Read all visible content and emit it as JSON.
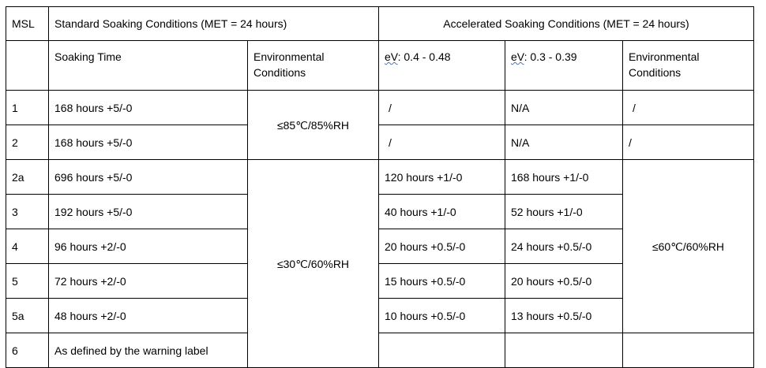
{
  "header": {
    "msl": "MSL",
    "standard": "Standard Soaking Conditions (MET = 24 hours)",
    "accelerated": "Accelerated Soaking Conditions (MET = 24 hours)"
  },
  "subheader": {
    "soaking_time": "Soaking Time",
    "env": "Environmental Conditions",
    "ev1_prefix": "eV",
    "ev1_rest": ": 0.4 - 0.48",
    "ev2_prefix": "eV",
    "ev2_rest": ": 0.3 - 0.39",
    "env2": "Environmental Conditions"
  },
  "merged": {
    "std_env_1": "≤85℃/85%RH",
    "std_env_2": "≤30℃/60%RH",
    "acc_env": "≤60℃/60%RH"
  },
  "rows": [
    {
      "msl": "1",
      "time": "168 hours +5/-0",
      "ev1": "/",
      "ev2": "N/A",
      "env": "/"
    },
    {
      "msl": "2",
      "time": "168 hours +5/-0",
      "ev1": "/",
      "ev2": "N/A",
      "env": "/"
    },
    {
      "msl": "2a",
      "time": "696 hours +5/-0",
      "ev1": "120 hours +1/-0",
      "ev2": "168 hours +1/-0"
    },
    {
      "msl": "3",
      "time": "192 hours +5/-0",
      "ev1": "40 hours +1/-0",
      "ev2": "52 hours +1/-0"
    },
    {
      "msl": "4",
      "time": "96 hours +2/-0",
      "ev1": "20 hours +0.5/-0",
      "ev2": "24 hours +0.5/-0"
    },
    {
      "msl": "5",
      "time": "72 hours +2/-0",
      "ev1": "15 hours +0.5/-0",
      "ev2": "20 hours +0.5/-0"
    },
    {
      "msl": "5a",
      "time": "48 hours +2/-0",
      "ev1": "10 hours +0.5/-0",
      "ev2": "13 hours +0.5/-0"
    },
    {
      "msl": "6",
      "time": "As defined by the warning label",
      "ev1": "",
      "ev2": ""
    }
  ]
}
